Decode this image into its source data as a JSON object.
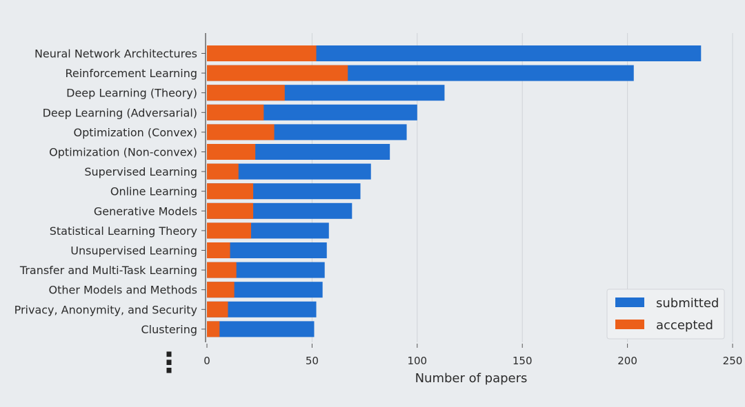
{
  "chart_data": {
    "type": "bar",
    "orientation": "horizontal",
    "stacking": "overlay",
    "categories": [
      "Neural Network Architectures",
      "Reinforcement Learning",
      "Deep Learning (Theory)",
      "Deep Learning (Adversarial)",
      "Optimization (Convex)",
      "Optimization (Non-convex)",
      "Supervised Learning",
      "Online Learning",
      "Generative Models",
      "Statistical Learning Theory",
      "Unsupervised Learning",
      "Transfer and Multi-Task Learning",
      "Other Models and Methods",
      "Privacy, Anonymity, and Security",
      "Clustering"
    ],
    "series": [
      {
        "name": "submitted",
        "color": "#1f6fd1",
        "values": [
          235,
          203,
          113,
          100,
          95,
          87,
          78,
          73,
          69,
          58,
          57,
          56,
          55,
          52,
          51
        ]
      },
      {
        "name": "accepted",
        "color": "#ec5f1a",
        "values": [
          52,
          67,
          37,
          27,
          32,
          23,
          15,
          22,
          22,
          21,
          11,
          14,
          13,
          10,
          6
        ]
      }
    ],
    "xlabel": "Number of papers",
    "xlim": [
      0,
      250
    ],
    "xticks": [
      "0",
      "50",
      "100",
      "150",
      "200",
      "250"
    ],
    "grid": "vertical",
    "legend": "bottom-right",
    "continuation_marker": "⋮"
  }
}
